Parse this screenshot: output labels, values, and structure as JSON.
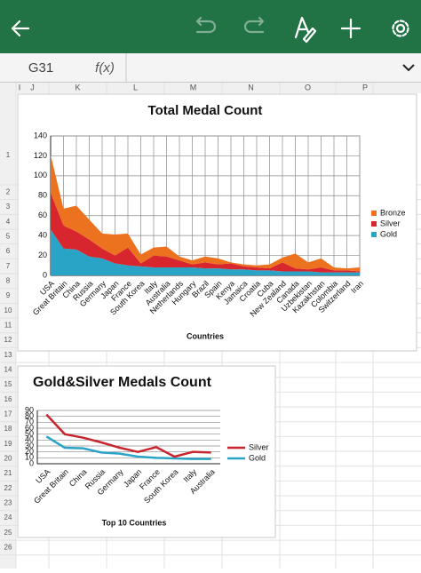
{
  "formula_bar": {
    "cell": "G31",
    "function_label": "f(x)"
  },
  "columns": [
    "I",
    "J",
    "K",
    "L",
    "M",
    "N",
    "O",
    "P"
  ],
  "rows": [
    1,
    2,
    3,
    4,
    5,
    6,
    7,
    8,
    9,
    10,
    11,
    12,
    13,
    14,
    15,
    16,
    17,
    18,
    19,
    20,
    21,
    22,
    23,
    24,
    25,
    26
  ],
  "chart_data": [
    {
      "type": "area",
      "stacked": true,
      "title": "Total Medal Count",
      "x_label": "Countries",
      "categories": [
        "USA",
        "Great Britain",
        "China",
        "Russia",
        "Germany",
        "Japan",
        "France",
        "South Korea",
        "Italy",
        "Australia",
        "Netherlands",
        "Hungary",
        "Brazil",
        "Spain",
        "Kenya",
        "Jamaica",
        "Croatia",
        "Cuba",
        "New Zealand",
        "Canada",
        "Uzbekistan",
        "Kazakhstan",
        "Colombia",
        "Switzerland",
        "Iran"
      ],
      "series": [
        {
          "name": "Gold",
          "color": "#2aa4c6",
          "values": [
            46,
            27,
            26,
            19,
            17,
            12,
            10,
            9,
            8,
            8,
            8,
            8,
            7,
            7,
            6,
            6,
            5,
            5,
            4,
            4,
            4,
            3,
            3,
            3,
            3
          ]
        },
        {
          "name": "Silver",
          "color": "#d8262e",
          "values": [
            37,
            23,
            18,
            17,
            10,
            8,
            18,
            3,
            12,
            11,
            7,
            3,
            6,
            4,
            6,
            3,
            3,
            2,
            9,
            3,
            2,
            5,
            2,
            2,
            1
          ]
        },
        {
          "name": "Bronze",
          "color": "#ec7220",
          "values": [
            38,
            17,
            26,
            20,
            15,
            21,
            14,
            9,
            8,
            10,
            4,
            4,
            6,
            6,
            1,
            2,
            2,
            4,
            5,
            15,
            7,
            9,
            3,
            2,
            4
          ]
        }
      ],
      "ylim": [
        0,
        140
      ],
      "yticks": [
        0,
        20,
        40,
        60,
        80,
        100,
        120,
        140
      ],
      "grid": "both",
      "legend": "right"
    },
    {
      "type": "line",
      "stacked": true,
      "title": "Gold&Silver Medals Count",
      "x_label": "Top 10 Countries",
      "categories": [
        "USA",
        "Great Britain",
        "China",
        "Russia",
        "Germany",
        "Japan",
        "France",
        "South Korea",
        "Italy",
        "Australia"
      ],
      "series": [
        {
          "name": "Gold",
          "color": "#2aa4c6",
          "values": [
            46,
            27,
            26,
            19,
            17,
            12,
            10,
            9,
            8,
            8
          ]
        },
        {
          "name": "Silver",
          "color": "#c8262e",
          "values": [
            37,
            23,
            18,
            17,
            10,
            8,
            18,
            3,
            12,
            11
          ]
        }
      ],
      "ylim": [
        0,
        90
      ],
      "yticks": [
        0,
        10,
        20,
        30,
        40,
        50,
        60,
        70,
        80,
        90
      ],
      "grid": "y",
      "legend": "right"
    }
  ]
}
